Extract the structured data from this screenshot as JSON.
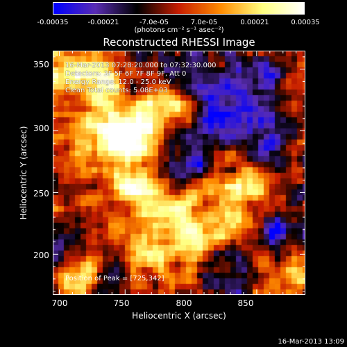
{
  "chart_data": {
    "type": "heatmap",
    "title": "Reconstructed RHESSI Image",
    "xlabel": "Heliocentric X (arcsec)",
    "ylabel": "Heliocentric Y (arcsec)",
    "xlim": [
      695,
      887
    ],
    "ylim": [
      167,
      365
    ],
    "x_ticks": [
      700,
      750,
      800,
      850
    ],
    "y_ticks": [
      200,
      250,
      300,
      350
    ],
    "colorbar": {
      "ticks": [
        "-0.00035",
        "-0.00021",
        "-7.0e-05",
        "7.0e-05",
        "0.00021",
        "0.00035"
      ],
      "unit_label": "(photons cm⁻² s⁻¹ asec⁻²)",
      "range": [
        -0.00035,
        0.00035
      ],
      "colormap": [
        "#0000ff",
        "#5a2db4",
        "#000000",
        "#c81e00",
        "#ff8c00",
        "#ffff80",
        "#ffffff"
      ]
    },
    "annotations": [
      "16-Mar-2013 07:28:20.000 to 07:32:30.000",
      "Detectors: 3F 5F 6F 7F 8F 9F, Att 0",
      "Energy Range: 12.0 - 25.0 keV",
      "Clean    Total counts: 5.08E+03"
    ],
    "peak_label": "Position of Peak = [725,342]",
    "peak_position": [
      725,
      342
    ],
    "bright_regions": [
      {
        "x": 728,
        "y": 340,
        "level": 1.0
      },
      {
        "x": 760,
        "y": 305,
        "level": 0.95
      },
      {
        "x": 745,
        "y": 290,
        "level": 0.8
      },
      {
        "x": 780,
        "y": 320,
        "level": 0.7
      },
      {
        "x": 720,
        "y": 300,
        "level": 0.7
      },
      {
        "x": 760,
        "y": 250,
        "level": 0.8
      },
      {
        "x": 790,
        "y": 235,
        "level": 0.6
      },
      {
        "x": 840,
        "y": 252,
        "level": 0.85
      },
      {
        "x": 825,
        "y": 220,
        "level": 0.6
      },
      {
        "x": 790,
        "y": 210,
        "level": 0.55
      },
      {
        "x": 725,
        "y": 240,
        "level": 0.6
      },
      {
        "x": 715,
        "y": 185,
        "level": 0.75
      },
      {
        "x": 760,
        "y": 200,
        "level": 0.55
      },
      {
        "x": 870,
        "y": 180,
        "level": 0.5
      },
      {
        "x": 700,
        "y": 350,
        "level": 0.6
      }
    ],
    "dark_regions": [
      {
        "x": 820,
        "y": 315,
        "level": -0.85
      },
      {
        "x": 860,
        "y": 300,
        "level": -0.8
      },
      {
        "x": 800,
        "y": 280,
        "level": -0.6
      },
      {
        "x": 850,
        "y": 340,
        "level": -0.6
      },
      {
        "x": 800,
        "y": 350,
        "level": -0.5
      },
      {
        "x": 715,
        "y": 220,
        "level": -0.5
      },
      {
        "x": 860,
        "y": 220,
        "level": -0.5
      },
      {
        "x": 740,
        "y": 175,
        "level": -0.45
      },
      {
        "x": 830,
        "y": 185,
        "level": -0.5
      }
    ]
  },
  "footer": {
    "timestamp": "16-Mar-2013 13:09"
  }
}
